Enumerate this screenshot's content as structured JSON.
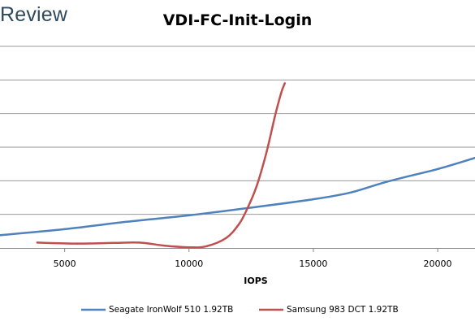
{
  "brand": {
    "text": "Review"
  },
  "chart_data": {
    "type": "line",
    "title": "VDI-FC-Init-Login",
    "xlabel": "IOPS",
    "ylabel": "",
    "xlim": [
      2400,
      21500
    ],
    "ylim": [
      0,
      6
    ],
    "xticks": [
      5000,
      10000,
      15000,
      20000
    ],
    "xtick_labels": [
      "5000",
      "10000",
      "15000",
      "20000"
    ],
    "yticks": [
      0,
      1,
      2,
      3,
      4,
      5,
      6
    ],
    "grid": true,
    "legend": "bottom",
    "series": [
      {
        "name": "Seagate IronWolf 510 1.92TB",
        "color": "#4f81bd",
        "x": [
          2400,
          5000,
          7500,
          10000,
          12500,
          15000,
          16500,
          18000,
          20000,
          21500
        ],
        "y": [
          0.38,
          0.56,
          0.78,
          0.97,
          1.2,
          1.45,
          1.65,
          1.98,
          2.35,
          2.68
        ]
      },
      {
        "name": "Samsung 983 DCT 1.92TB",
        "color": "#c0504d",
        "x": [
          3900,
          5500,
          7000,
          8000,
          9000,
          10000,
          10700,
          11500,
          12000,
          12300,
          12700,
          13100,
          13450,
          13700,
          13850
        ],
        "y": [
          0.16,
          0.13,
          0.15,
          0.16,
          0.07,
          0.02,
          0.05,
          0.3,
          0.7,
          1.1,
          1.8,
          2.8,
          3.9,
          4.6,
          4.9
        ]
      }
    ]
  }
}
